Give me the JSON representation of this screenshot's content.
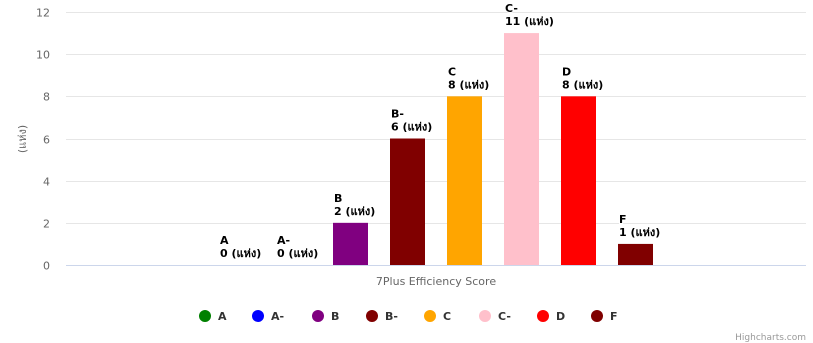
{
  "chart_data": {
    "type": "bar",
    "title": "",
    "xlabel": "7Plus Efficiency Score",
    "ylabel": "(แห่ง)",
    "ylim": [
      0,
      12
    ],
    "yticks": [
      0,
      2,
      4,
      6,
      8,
      10,
      12
    ],
    "grid": true,
    "legend_position": "bottom-center",
    "series": [
      {
        "name": "A",
        "value": 0,
        "color": "#008000",
        "label_name": "A",
        "label_value": "0 (แห่ง)"
      },
      {
        "name": "A-",
        "value": 0,
        "color": "#0000ff",
        "label_name": "A-",
        "label_value": "0 (แห่ง)"
      },
      {
        "name": "B",
        "value": 2,
        "color": "#800080",
        "label_name": "B",
        "label_value": "2 (แห่ง)"
      },
      {
        "name": "B-",
        "value": 6,
        "color": "#800000",
        "label_name": "B-",
        "label_value": "6 (แห่ง)"
      },
      {
        "name": "C",
        "value": 8,
        "color": "#ffa500",
        "label_name": "C",
        "label_value": "8 (แห่ง)"
      },
      {
        "name": "C-",
        "value": 11,
        "color": "#ffc0cb",
        "label_name": "C-",
        "label_value": "11 (แห่ง)"
      },
      {
        "name": "D",
        "value": 8,
        "color": "#ff0000",
        "label_name": "D",
        "label_value": "8 (แห่ง)"
      },
      {
        "name": "F",
        "value": 1,
        "color": "#800000",
        "label_name": "F",
        "label_value": "1 (แห่ง)"
      }
    ]
  },
  "credits": "Highcharts.com"
}
